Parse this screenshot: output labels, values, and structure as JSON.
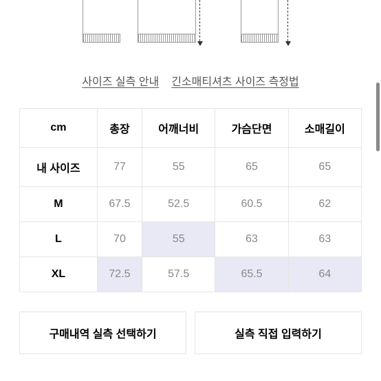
{
  "tabs": {
    "size_guide": "사이즈 실측 안내",
    "measure_guide": "긴소매티셔츠 사이즈 측정법"
  },
  "table": {
    "headers": {
      "unit": "cm",
      "total_length": "총장",
      "shoulder": "어깨너비",
      "chest": "가슴단면",
      "sleeve": "소매길이"
    },
    "rows": [
      {
        "label": "내 사이즈",
        "values": [
          "77",
          "55",
          "65",
          "65"
        ],
        "highlights": [
          false,
          false,
          false,
          false
        ]
      },
      {
        "label": "M",
        "values": [
          "67.5",
          "52.5",
          "60.5",
          "62"
        ],
        "highlights": [
          false,
          false,
          false,
          false
        ]
      },
      {
        "label": "L",
        "values": [
          "70",
          "55",
          "63",
          "63"
        ],
        "highlights": [
          false,
          true,
          false,
          false
        ]
      },
      {
        "label": "XL",
        "values": [
          "72.5",
          "57.5",
          "65.5",
          "64"
        ],
        "highlights": [
          true,
          false,
          true,
          true
        ]
      }
    ]
  },
  "buttons": {
    "select_history": "구매내역 실측 선택하기",
    "input_direct": "실측 직접 입력하기"
  },
  "colors": {
    "highlight_bg": "#e8e9f5",
    "border": "#e5e5e5",
    "text_muted": "#888",
    "text_primary": "#000"
  }
}
